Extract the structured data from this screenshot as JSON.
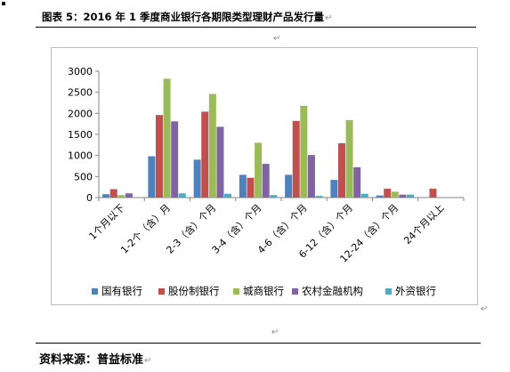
{
  "title": "图表 5：2016 年 1 季度商业银行各期限类型理财产品发行量",
  "paragraph_mark": "↵",
  "source": "资料来源：普益标准",
  "chart_data": {
    "type": "bar",
    "categories": [
      "1个月以下",
      "1-2个（含）月",
      "2-3（含）个月",
      "3-4（含）个月",
      "4-6（含）个月",
      "6-12（含）个月",
      "12-24（含）个月",
      "24个月以上"
    ],
    "series": [
      {
        "name": "国有银行",
        "color": "#4f81bd",
        "values": [
          80,
          980,
          900,
          540,
          540,
          420,
          50,
          0
        ]
      },
      {
        "name": "股份制银行",
        "color": "#c0504d",
        "values": [
          200,
          1960,
          2040,
          470,
          1820,
          1290,
          210,
          210
        ]
      },
      {
        "name": "城商银行",
        "color": "#9bbb59",
        "values": [
          60,
          2820,
          2460,
          1300,
          2180,
          1840,
          140,
          0
        ]
      },
      {
        "name": "农村金融机构",
        "color": "#8064a2",
        "values": [
          100,
          1810,
          1680,
          800,
          1010,
          720,
          70,
          0
        ]
      },
      {
        "name": "外资银行",
        "color": "#4bacc6",
        "values": [
          0,
          100,
          90,
          60,
          40,
          90,
          70,
          0
        ]
      }
    ],
    "ylim": [
      0,
      3000
    ],
    "yticks": [
      "0",
      "500",
      "1000",
      "1500",
      "2000",
      "2500",
      "3000"
    ],
    "legend_position": "bottom",
    "grid": false
  }
}
